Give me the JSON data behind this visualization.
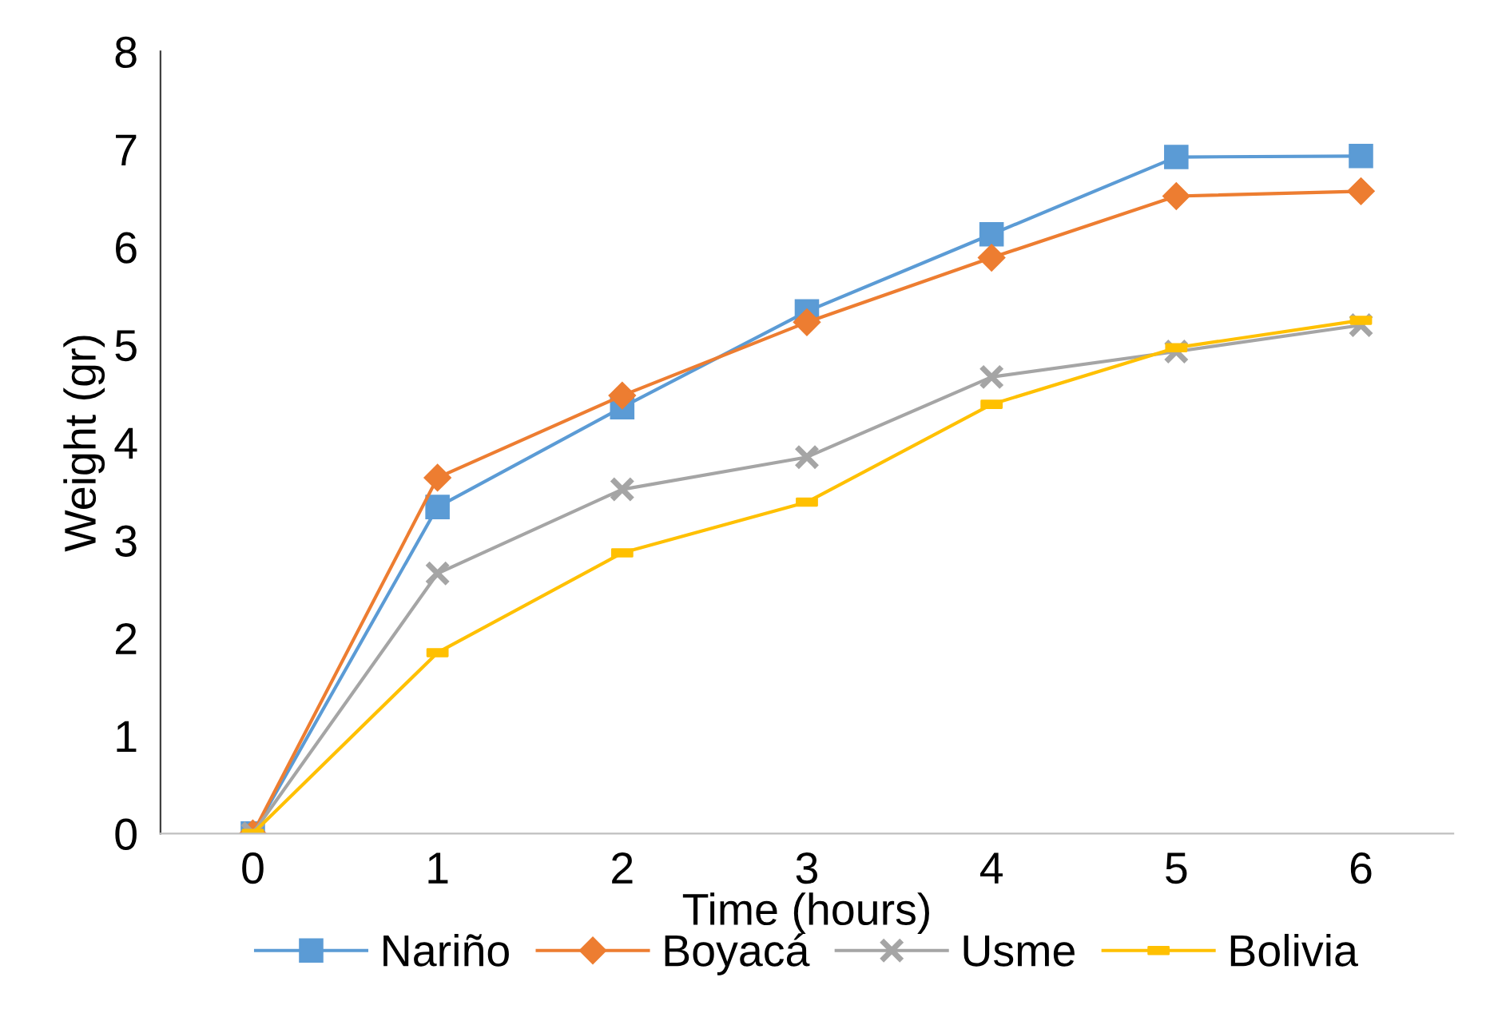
{
  "chart_data": {
    "type": "line",
    "xlabel": "Time (hours)",
    "ylabel": "Weight (gr)",
    "categories": [
      "0",
      "1",
      "2",
      "3",
      "4",
      "5",
      "6"
    ],
    "ylim": [
      0,
      8
    ],
    "yticks": [
      0,
      1,
      2,
      3,
      4,
      5,
      6,
      7,
      8
    ],
    "grid": false,
    "legend": "bottom",
    "series": [
      {
        "name": "Nariño",
        "color": "#5b9bd5",
        "marker": "square",
        "values": [
          0,
          3.34,
          4.36,
          5.34,
          6.13,
          6.92,
          6.93
        ]
      },
      {
        "name": "Boyacá",
        "color": "#ed7d31",
        "marker": "diamond",
        "values": [
          0,
          3.64,
          4.48,
          5.23,
          5.89,
          6.52,
          6.57
        ]
      },
      {
        "name": "Usme",
        "color": "#a5a5a5",
        "marker": "cross",
        "values": [
          0,
          2.66,
          3.52,
          3.85,
          4.67,
          4.93,
          5.2
        ]
      },
      {
        "name": "Bolivia",
        "color": "#ffc000",
        "marker": "square",
        "values": [
          0,
          1.85,
          2.87,
          3.39,
          4.39,
          4.97,
          5.25
        ]
      }
    ]
  }
}
